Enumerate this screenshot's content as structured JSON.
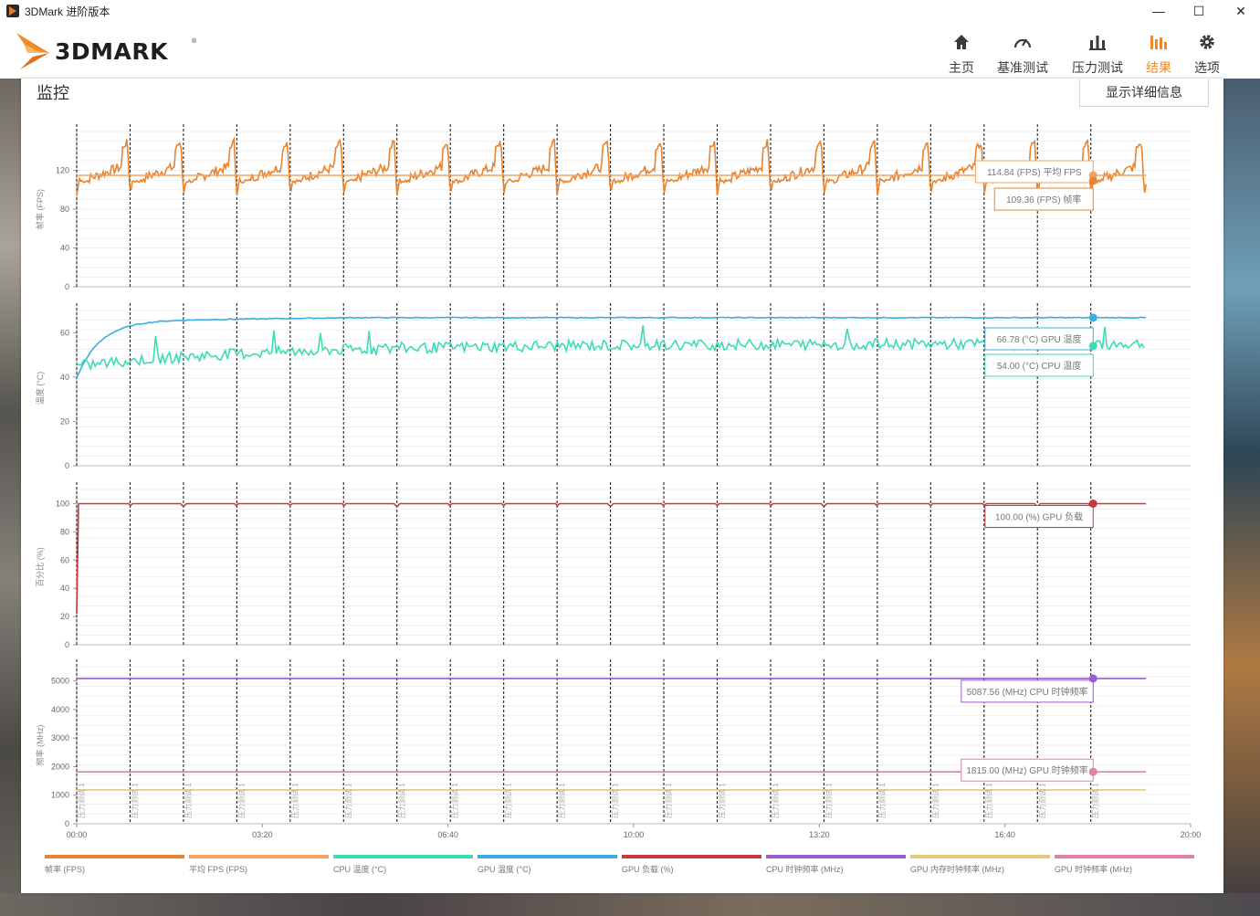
{
  "window": {
    "title": "3DMark 进阶版本",
    "minimize": "—",
    "maximize": "☐",
    "close": "✕"
  },
  "header": {
    "logo": "3DMARK",
    "nav": [
      {
        "label": "主页",
        "icon": "home-icon"
      },
      {
        "label": "基准测试",
        "icon": "gauge-icon"
      },
      {
        "label": "压力测试",
        "icon": "bar-chart-icon"
      },
      {
        "label": "结果",
        "icon": "results-icon",
        "active": true
      },
      {
        "label": "选项",
        "icon": "gear-icon"
      }
    ]
  },
  "panel": {
    "title": "监控",
    "detail_button": "显示详细信息"
  },
  "colors": {
    "fps": "#e8832e",
    "avg_fps": "#f3a463",
    "cpu_temp": "#3cdcb4",
    "gpu_temp": "#39aee3",
    "gpu_load": "#c8383c",
    "cpu_clock": "#9b5cd0",
    "mem_clock": "#e3c97e",
    "gpu_clock": "#e07fa9",
    "accent": "#f08a24"
  },
  "chart_data": {
    "type": "line",
    "x_ticks": [
      "00:00",
      "03:20",
      "06:40",
      "10:00",
      "13:20",
      "16:40",
      "20:00"
    ],
    "x_range_seconds": [
      0,
      1200
    ],
    "marker_label": "压力测试 1",
    "panels": [
      {
        "ylabel": "帧率 (FPS)",
        "ylim": [
          0,
          160
        ],
        "yticks": [
          0,
          40,
          80,
          120
        ],
        "series": [
          {
            "name": "帧率",
            "kind": "sawtooth",
            "base": 112,
            "peak": 150,
            "trough": 94
          },
          {
            "name": "平均 FPS",
            "kind": "flat",
            "value": 114.84
          }
        ],
        "tooltips": [
          "114.84 (FPS) 平均 FPS",
          "109.36 (FPS) 帧率"
        ]
      },
      {
        "ylabel": "温度 (°C)",
        "ylim": [
          0,
          70
        ],
        "yticks": [
          0,
          20,
          40,
          60
        ],
        "series": [
          {
            "name": "GPU 温度",
            "kind": "ramp",
            "start": 41,
            "end": 66.78
          },
          {
            "name": "CPU 温度",
            "kind": "noisy_ramp",
            "start": 45,
            "end": 54.0
          }
        ],
        "tooltips": [
          "66.78 (°C) GPU 温度",
          "54.00 (°C) CPU 温度"
        ]
      },
      {
        "ylabel": "百分比 (%)",
        "ylim": [
          0,
          110
        ],
        "yticks": [
          0,
          20,
          40,
          60,
          80,
          100
        ],
        "series": [
          {
            "name": "GPU 负载",
            "kind": "step",
            "start": 22,
            "value": 100.0
          }
        ],
        "tooltips": [
          "100.00 (%) GPU 负载"
        ]
      },
      {
        "ylabel": "频率 (MHz)",
        "ylim": [
          0,
          5500
        ],
        "yticks": [
          0,
          1000,
          2000,
          3000,
          4000,
          5000
        ],
        "series": [
          {
            "name": "CPU 时钟频率",
            "kind": "flat",
            "value": 5087.56
          },
          {
            "name": "GPU 时钟频率",
            "kind": "flat",
            "value": 1815.0
          },
          {
            "name": "GPU 内存时钟频率",
            "kind": "flat",
            "value": 1187.5
          }
        ],
        "tooltips": [
          "5087.56 (MHz) CPU 时钟频率",
          "1815.00 (MHz) GPU 时钟频率"
        ]
      }
    ],
    "legend": [
      {
        "label": "帧率 (FPS)",
        "color": "#e8832e"
      },
      {
        "label": "平均 FPS (FPS)",
        "color": "#f3a463"
      },
      {
        "label": "CPU 温度 (°C)",
        "color": "#3cdcb4"
      },
      {
        "label": "GPU 温度 (°C)",
        "color": "#39aee3"
      },
      {
        "label": "GPU 负载 (%)",
        "color": "#c8383c"
      },
      {
        "label": "CPU 时钟频率 (MHz)",
        "color": "#9b5cd0"
      },
      {
        "label": "GPU 内存时钟频率 (MHz)",
        "color": "#e3c97e"
      },
      {
        "label": "GPU 时钟频率 (MHz)",
        "color": "#e07fa9"
      }
    ]
  }
}
